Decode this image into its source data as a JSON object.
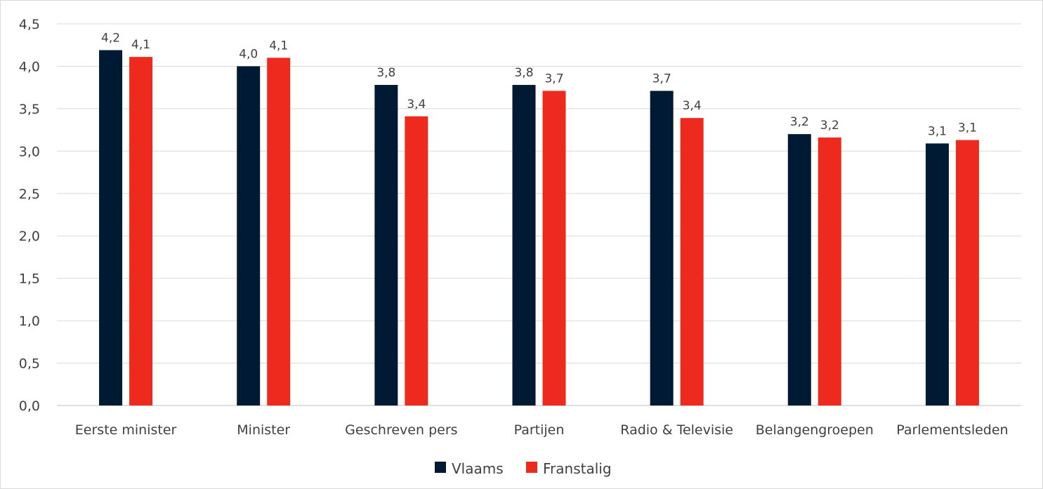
{
  "chart_data": {
    "type": "bar",
    "categories": [
      "Eerste minister",
      "Minister",
      "Geschreven pers",
      "Partijen",
      "Radio & Televisie",
      "Belangengroepen",
      "Parlementsleden"
    ],
    "series": [
      {
        "name": "Vlaams",
        "color": "#001a33",
        "values": [
          4.19,
          4.0,
          3.78,
          3.78,
          3.71,
          3.2,
          3.09
        ],
        "labels": [
          "4,2",
          "4,0",
          "3,8",
          "3,8",
          "3,7",
          "3,2",
          "3,1"
        ]
      },
      {
        "name": "Franstalig",
        "color": "#ee2a1e",
        "values": [
          4.11,
          4.1,
          3.41,
          3.71,
          3.39,
          3.16,
          3.13
        ],
        "labels": [
          "4,1",
          "4,1",
          "3,4",
          "3,7",
          "3,4",
          "3,2",
          "3,1"
        ]
      }
    ],
    "ylim": [
      0,
      4.5
    ],
    "yticks": [
      "0,0",
      "0,5",
      "1,0",
      "1,5",
      "2,0",
      "2,5",
      "3,0",
      "3,5",
      "4,0",
      "4,5"
    ],
    "title": "",
    "xlabel": "",
    "ylabel": "",
    "grid": true,
    "legend_position": "bottom"
  }
}
